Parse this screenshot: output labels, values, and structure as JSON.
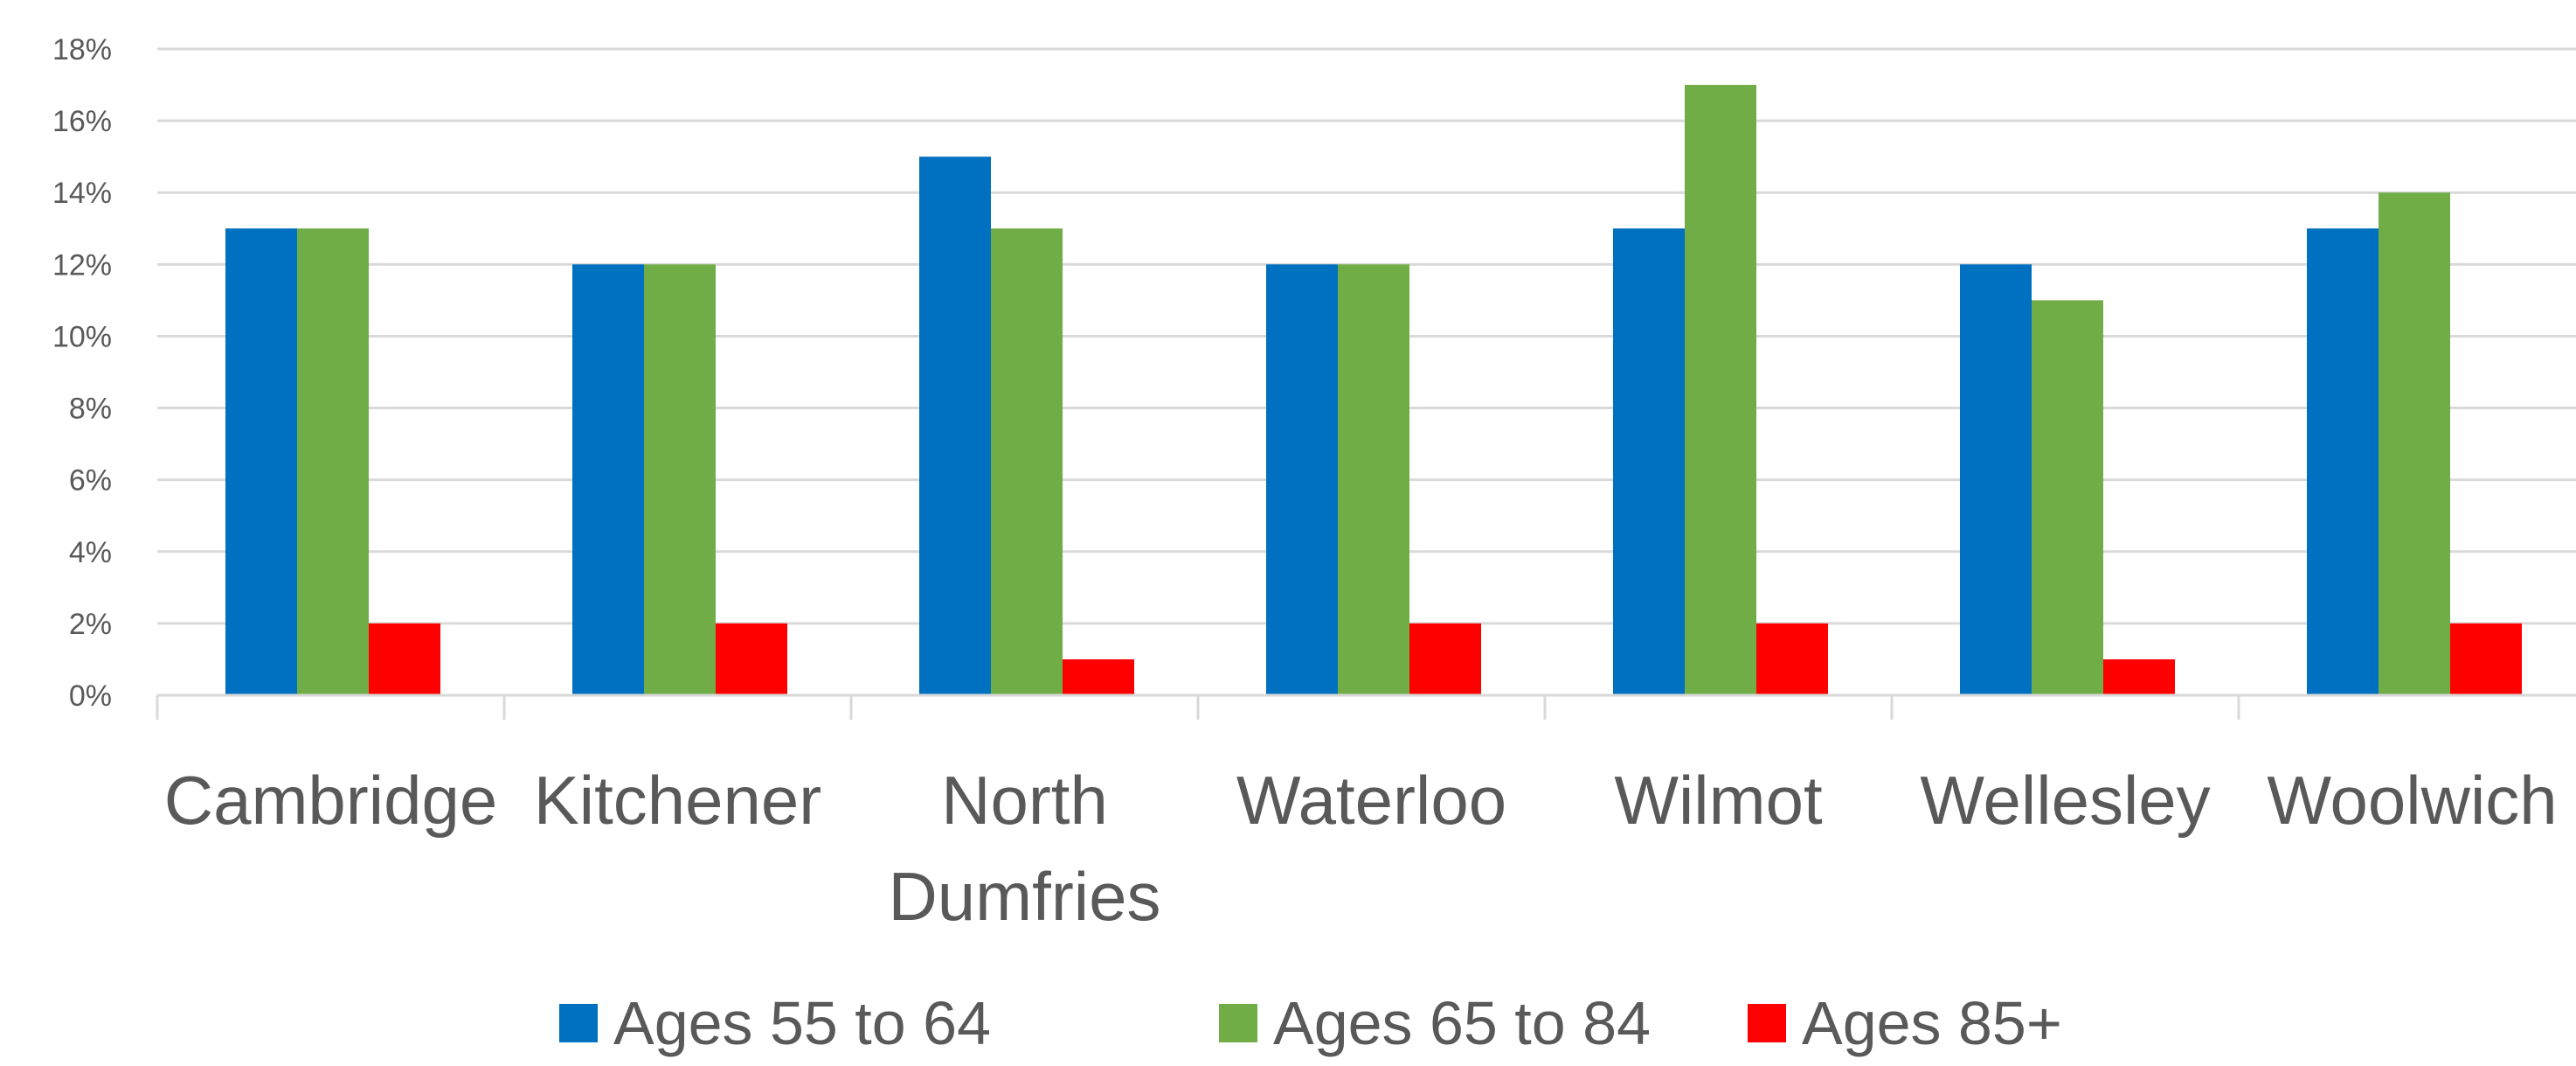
{
  "chart_data": {
    "type": "bar",
    "title": "",
    "xlabel": "",
    "ylabel": "",
    "categories": [
      [
        "Cambridge"
      ],
      [
        "Kitchener"
      ],
      [
        "North",
        "Dumfries"
      ],
      [
        "Waterloo"
      ],
      [
        "Wilmot"
      ],
      [
        "Wellesley"
      ],
      [
        "Woolwich"
      ]
    ],
    "series": [
      {
        "name": "Ages 55 to 64",
        "color": "#0070c0",
        "values": [
          13,
          12,
          15,
          12,
          13,
          12,
          13
        ]
      },
      {
        "name": "Ages 65 to 84",
        "color": "#70ad47",
        "values": [
          13,
          12,
          13,
          12,
          17,
          11,
          14
        ]
      },
      {
        "name": "Ages 85+",
        "color": "#ff0000",
        "values": [
          2,
          2,
          1,
          2,
          2,
          1,
          2
        ]
      }
    ],
    "ylim": [
      0,
      18
    ],
    "yticks": [
      "0%",
      "2%",
      "4%",
      "6%",
      "8%",
      "10%",
      "12%",
      "14%",
      "16%",
      "18%"
    ],
    "grid": true,
    "legend": "bottom"
  }
}
